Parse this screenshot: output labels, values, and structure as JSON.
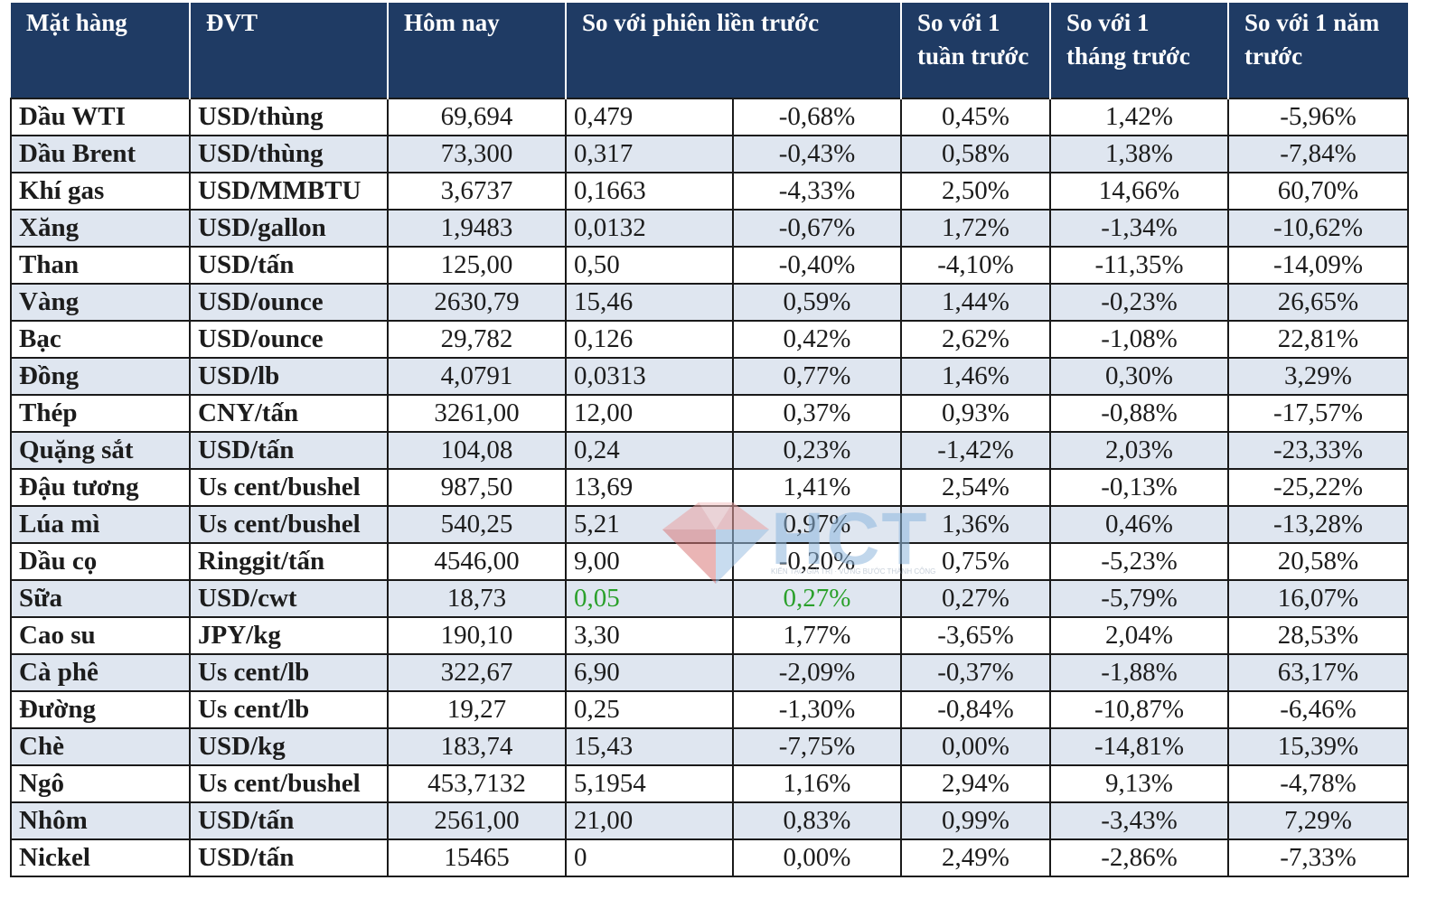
{
  "header": {
    "name": "Mặt hàng",
    "unit": "ĐVT",
    "today": "Hôm nay",
    "prev_session": "So với phiên liền trước",
    "week": "So với 1 tuần trước",
    "month": "So với 1 tháng trước",
    "year": "So với 1 năm trước"
  },
  "rows": [
    {
      "name": "Dầu WTI",
      "unit": "USD/thùng",
      "today": "69,694",
      "chg": "0,479",
      "pct": "-0,68%",
      "week": "0,45%",
      "month": "1,42%",
      "year": "-5,96%"
    },
    {
      "name": "Dầu Brent",
      "unit": "USD/thùng",
      "today": "73,300",
      "chg": "0,317",
      "pct": "-0,43%",
      "week": "0,58%",
      "month": "1,38%",
      "year": "-7,84%"
    },
    {
      "name": "Khí gas",
      "unit": "USD/MMBTU",
      "today": "3,6737",
      "chg": "0,1663",
      "pct": "-4,33%",
      "week": "2,50%",
      "month": "14,66%",
      "year": "60,70%"
    },
    {
      "name": "Xăng",
      "unit": "USD/gallon",
      "today": "1,9483",
      "chg": "0,0132",
      "pct": "-0,67%",
      "week": "1,72%",
      "month": "-1,34%",
      "year": "-10,62%"
    },
    {
      "name": "Than",
      "unit": "USD/tấn",
      "today": "125,00",
      "chg": "0,50",
      "pct": "-0,40%",
      "week": "-4,10%",
      "month": "-11,35%",
      "year": "-14,09%"
    },
    {
      "name": "Vàng",
      "unit": "USD/ounce",
      "today": "2630,79",
      "chg": "15,46",
      "pct": "0,59%",
      "week": "1,44%",
      "month": "-0,23%",
      "year": "26,65%"
    },
    {
      "name": "Bạc",
      "unit": "USD/ounce",
      "today": "29,782",
      "chg": "0,126",
      "pct": "0,42%",
      "week": "2,62%",
      "month": "-1,08%",
      "year": "22,81%"
    },
    {
      "name": "Đồng",
      "unit": "USD/lb",
      "today": "4,0791",
      "chg": "0,0313",
      "pct": "0,77%",
      "week": "1,46%",
      "month": "0,30%",
      "year": "3,29%"
    },
    {
      "name": "Thép",
      "unit": "CNY/tấn",
      "today": "3261,00",
      "chg": "12,00",
      "pct": "0,37%",
      "week": "0,93%",
      "month": "-0,88%",
      "year": "-17,57%"
    },
    {
      "name": "Quặng sắt",
      "unit": "USD/tấn",
      "today": "104,08",
      "chg": "0,24",
      "pct": "0,23%",
      "week": "-1,42%",
      "month": "2,03%",
      "year": "-23,33%"
    },
    {
      "name": "Đậu tương",
      "unit": "Us cent/bushel",
      "today": "987,50",
      "chg": "13,69",
      "pct": "1,41%",
      "week": "2,54%",
      "month": "-0,13%",
      "year": "-25,22%"
    },
    {
      "name": "Lúa mì",
      "unit": "Us cent/bushel",
      "today": "540,25",
      "chg": "5,21",
      "pct": "0,97%",
      "week": "1,36%",
      "month": "0,46%",
      "year": "-13,28%"
    },
    {
      "name": "Dầu cọ",
      "unit": "Ringgit/tấn",
      "today": "4546,00",
      "chg": "9,00",
      "pct": "-0,20%",
      "week": "0,75%",
      "month": "-5,23%",
      "year": "20,58%"
    },
    {
      "name": "Sữa",
      "unit": "USD/cwt",
      "today": "18,73",
      "chg": "0,05",
      "pct": "0,27%",
      "week": "0,27%",
      "month": "-5,79%",
      "year": "16,07%",
      "highlight": "#2aa02a"
    },
    {
      "name": "Cao su",
      "unit": "JPY/kg",
      "today": "190,10",
      "chg": "3,30",
      "pct": "1,77%",
      "week": "-3,65%",
      "month": "2,04%",
      "year": "28,53%"
    },
    {
      "name": "Cà phê",
      "unit": "Us cent/lb",
      "today": "322,67",
      "chg": "6,90",
      "pct": "-2,09%",
      "week": "-0,37%",
      "month": "-1,88%",
      "year": "63,17%"
    },
    {
      "name": "Đường",
      "unit": "Us cent/lb",
      "today": "19,27",
      "chg": "0,25",
      "pct": "-1,30%",
      "week": "-0,84%",
      "month": "-10,87%",
      "year": "-6,46%"
    },
    {
      "name": "Chè",
      "unit": "USD/kg",
      "today": "183,74",
      "chg": "15,43",
      "pct": "-7,75%",
      "week": "0,00%",
      "month": "-14,81%",
      "year": "15,39%"
    },
    {
      "name": "Ngô",
      "unit": "Us cent/bushel",
      "today": "453,7132",
      "chg": "5,1954",
      "pct": "1,16%",
      "week": "2,94%",
      "month": "9,13%",
      "year": "-4,78%"
    },
    {
      "name": "Nhôm",
      "unit": "USD/tấn",
      "today": "2561,00",
      "chg": "21,00",
      "pct": "0,83%",
      "week": "0,99%",
      "month": "-3,43%",
      "year": "7,29%"
    },
    {
      "name": "Nickel",
      "unit": "USD/tấn",
      "today": "15465",
      "chg": "0",
      "pct": "0,00%",
      "week": "2,49%",
      "month": "-2,86%",
      "year": "-7,33%"
    }
  ],
  "watermark": {
    "logo_text": "HCT",
    "sub_text": "KIẾN TẠO GIÁ TRỊ · VỮNG BƯỚC THÀNH CÔNG"
  },
  "colors": {
    "header_bg": "#1f3b64",
    "stripe_bg": "#dfe6f0",
    "positive_green": "#2aa02a"
  }
}
